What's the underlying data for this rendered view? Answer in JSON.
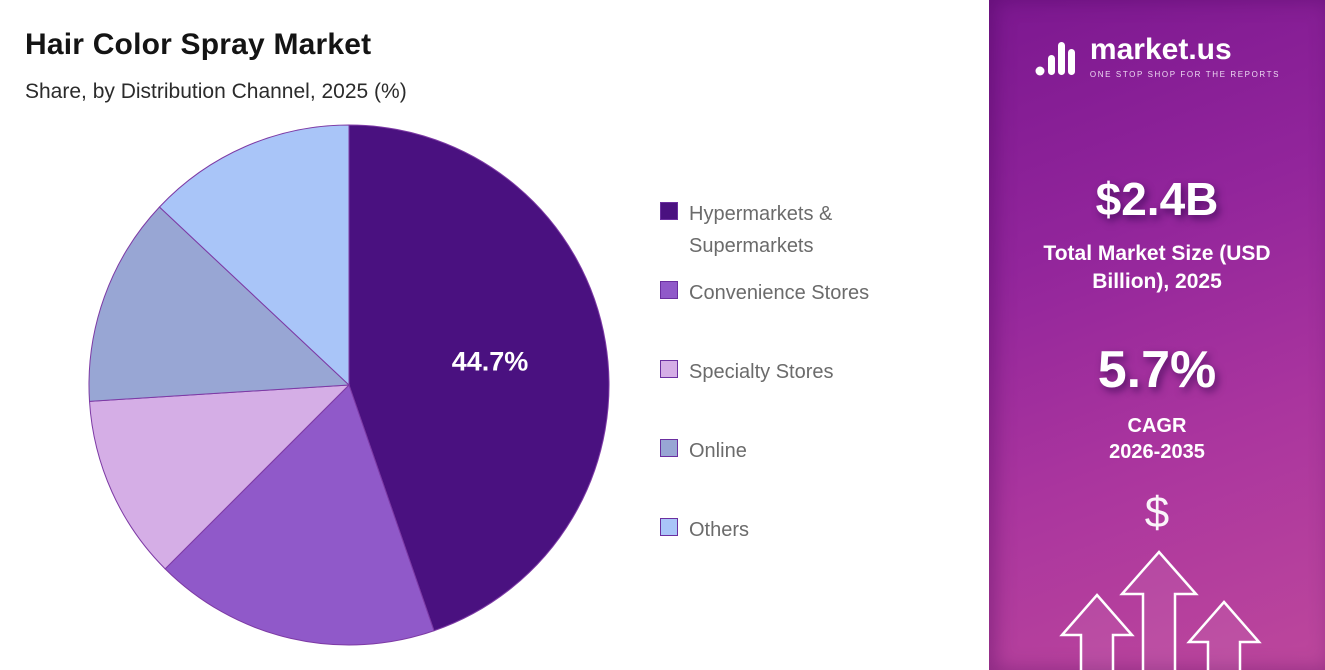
{
  "header": {
    "title": "Hair Color Spray Market",
    "subtitle": "Share, by Distribution Channel, 2025 (%)"
  },
  "chart_data": {
    "type": "pie",
    "title": "Hair Color Spray Market",
    "subtitle": "Share, by Distribution Channel, 2025 (%)",
    "categories": [
      "Hypermarkets & Supermarkets",
      "Convenience Stores",
      "Specialty Stores",
      "Online",
      "Others"
    ],
    "values": [
      44.7,
      17.8,
      11.5,
      13.0,
      13.0
    ],
    "colors": [
      "#4a1180",
      "#9059c9",
      "#d5aee6",
      "#98a6d4",
      "#a9c5f8"
    ],
    "value_labels": [
      "44.7%",
      "",
      "",
      "",
      ""
    ],
    "stroke_color": "#7d3aa5",
    "legend_position": "right",
    "start_angle": 0,
    "direction": "clockwise"
  },
  "sidebar": {
    "logo_name": "market.us",
    "logo_tagline": "ONE STOP SHOP FOR THE REPORTS",
    "market_size_value": "$2.4B",
    "market_size_label": "Total Market Size (USD Billion), 2025",
    "cagr_value": "5.7%",
    "cagr_label_line1": "CAGR",
    "cagr_label_line2": "2026-2035",
    "dollar_icon": "$"
  }
}
